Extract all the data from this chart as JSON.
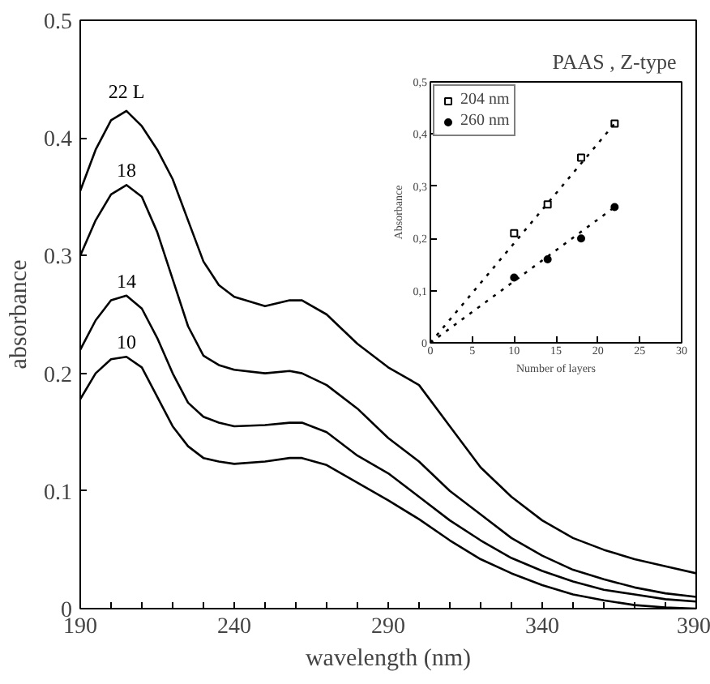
{
  "chart_data": [
    {
      "type": "line",
      "xlabel": "wavelength (nm)",
      "ylabel": "absorbance",
      "x": [
        190,
        195,
        200,
        205,
        210,
        215,
        220,
        225,
        230,
        235,
        240,
        250,
        258,
        262,
        270,
        280,
        290,
        300,
        310,
        320,
        330,
        340,
        350,
        360,
        370,
        380,
        390
      ],
      "series": [
        {
          "name": "22 L",
          "color": "#000000",
          "values": [
            0.355,
            0.39,
            0.415,
            0.423,
            0.41,
            0.39,
            0.365,
            0.33,
            0.295,
            0.275,
            0.265,
            0.257,
            0.262,
            0.262,
            0.25,
            0.225,
            0.205,
            0.19,
            0.155,
            0.12,
            0.095,
            0.075,
            0.06,
            0.05,
            0.042,
            0.036,
            0.03
          ]
        },
        {
          "name": "18",
          "color": "#000000",
          "values": [
            0.3,
            0.33,
            0.352,
            0.36,
            0.35,
            0.32,
            0.28,
            0.24,
            0.215,
            0.207,
            0.203,
            0.2,
            0.202,
            0.2,
            0.19,
            0.17,
            0.145,
            0.125,
            0.1,
            0.08,
            0.06,
            0.045,
            0.033,
            0.025,
            0.018,
            0.013,
            0.01
          ]
        },
        {
          "name": "14",
          "color": "#000000",
          "values": [
            0.22,
            0.245,
            0.262,
            0.266,
            0.255,
            0.23,
            0.2,
            0.175,
            0.163,
            0.158,
            0.155,
            0.156,
            0.158,
            0.158,
            0.15,
            0.13,
            0.115,
            0.095,
            0.075,
            0.058,
            0.043,
            0.032,
            0.023,
            0.016,
            0.012,
            0.008,
            0.006
          ]
        },
        {
          "name": "10",
          "color": "#000000",
          "values": [
            0.178,
            0.2,
            0.212,
            0.214,
            0.205,
            0.18,
            0.155,
            0.138,
            0.128,
            0.125,
            0.123,
            0.125,
            0.128,
            0.128,
            0.122,
            0.107,
            0.092,
            0.076,
            0.058,
            0.042,
            0.03,
            0.02,
            0.012,
            0.007,
            0.003,
            0.001,
            0.0
          ]
        }
      ],
      "xlim": [
        190,
        390
      ],
      "ylim": [
        0,
        0.5
      ],
      "xticks": [
        190,
        {
          "value": 200,
          "label": null
        },
        {
          "value": 210,
          "label": null
        },
        {
          "value": 220,
          "label": null
        },
        {
          "value": 230,
          "label": null
        },
        240,
        {
          "value": 250,
          "label": null
        },
        {
          "value": 260,
          "label": null
        },
        {
          "value": 270,
          "label": null
        },
        {
          "value": 280,
          "label": null
        },
        290,
        {
          "value": 300,
          "label": null
        },
        {
          "value": 310,
          "label": null
        },
        {
          "value": 320,
          "label": null
        },
        {
          "value": 330,
          "label": null
        },
        340,
        {
          "value": 350,
          "label": null
        },
        {
          "value": 360,
          "label": null
        },
        {
          "value": 370,
          "label": null
        },
        {
          "value": 380,
          "label": null
        },
        390
      ],
      "yticks": [
        0,
        0.1,
        0.2,
        0.3,
        0.4,
        0.5
      ],
      "grid": false,
      "legend": false,
      "marker": "none",
      "line_style": "solid"
    },
    {
      "type": "scatter",
      "title": "PAAS ,  Z-type",
      "xlabel": "Number of layers",
      "ylabel": "Absorbance",
      "series": [
        {
          "name": "204 nm",
          "color": "#000000",
          "marker": "square",
          "x": [
            10,
            14,
            18,
            22
          ],
          "values": [
            0.21,
            0.265,
            0.355,
            0.42
          ]
        },
        {
          "name": "260 nm",
          "color": "#000000",
          "marker": "circle",
          "x": [
            10,
            14,
            18,
            22
          ],
          "values": [
            0.125,
            0.16,
            0.2,
            0.26
          ]
        },
        {
          "type": "line",
          "color": "#000000",
          "line_style": "dotted",
          "x": [
            0,
            22
          ],
          "values": [
            0,
            0.42
          ]
        },
        {
          "type": "line",
          "color": "#000000",
          "line_style": "dotted",
          "x": [
            0,
            22
          ],
          "values": [
            0,
            0.26
          ]
        }
      ],
      "xlim": [
        0,
        30
      ],
      "ylim": [
        0,
        0.5
      ],
      "xticks": [
        0,
        5,
        10,
        15,
        20,
        25,
        30
      ],
      "yticks": [
        0,
        {
          "value": 0.1,
          "label": "0,1"
        },
        {
          "value": 0.2,
          "label": "0,2"
        },
        {
          "value": 0.3,
          "label": "0,3"
        },
        {
          "value": 0.4,
          "label": "0,4"
        },
        {
          "value": 0.5,
          "label": "0,5"
        }
      ],
      "grid": false,
      "legend": "top left"
    }
  ]
}
